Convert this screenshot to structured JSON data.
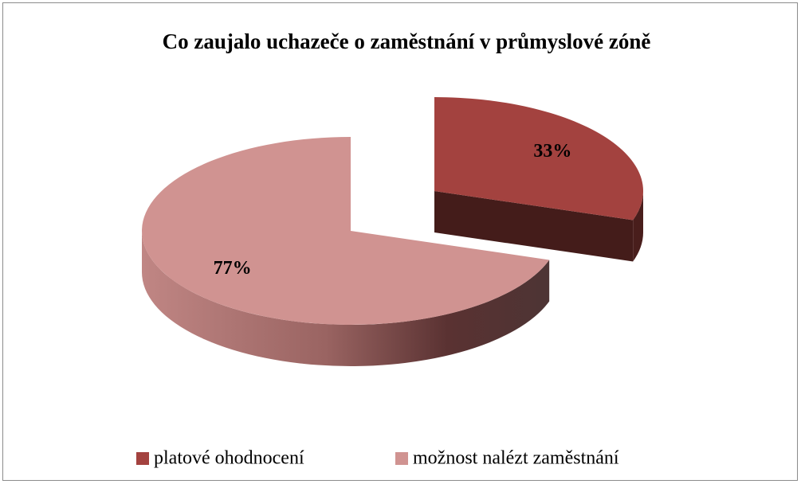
{
  "chart_data": {
    "type": "pie",
    "title": "Co zaujalo uchazeče o zaměstnání v průmyslové zóně",
    "labels": [
      "platové ohodnocení",
      "možnost nalézt zaměstnání"
    ],
    "values": [
      33,
      77
    ],
    "value_labels": [
      "33%",
      "77%"
    ],
    "colors": [
      "#a3423f",
      "#d09391"
    ],
    "legend": "bottom"
  }
}
